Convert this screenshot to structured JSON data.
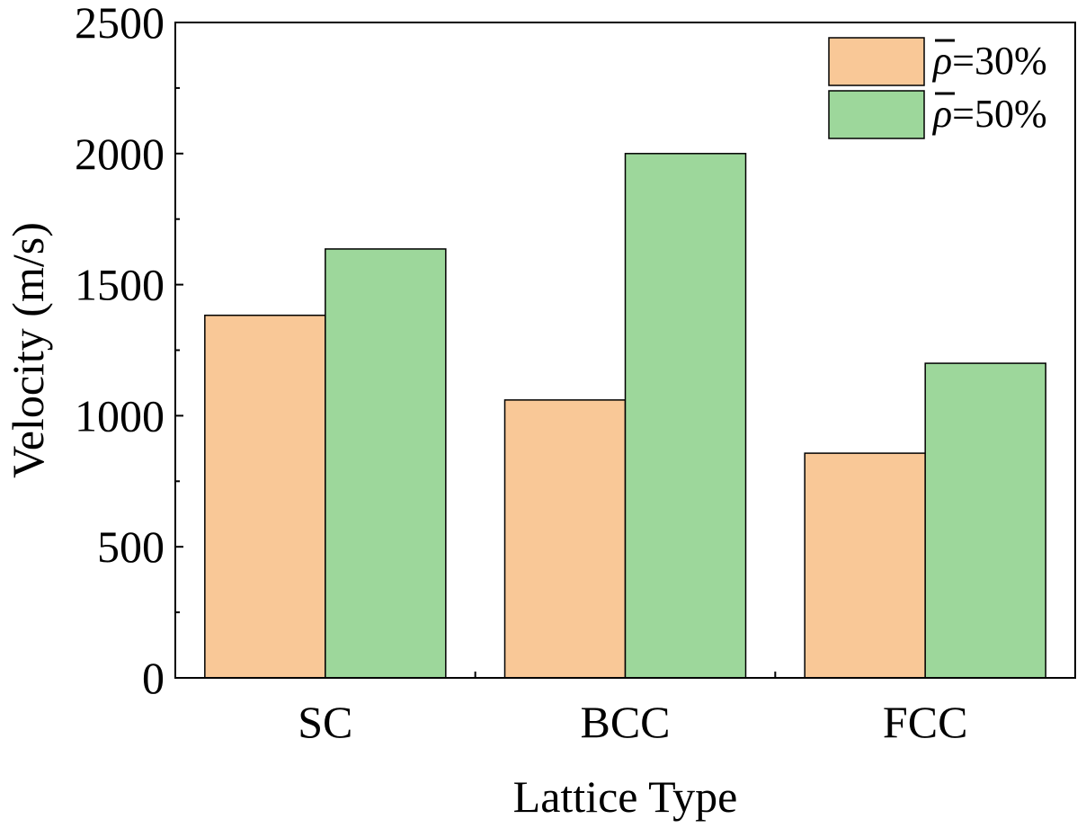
{
  "chart_data": {
    "type": "bar",
    "title": "",
    "xlabel": "Lattice Type",
    "ylabel": "Velocity (m/s)",
    "categories": [
      "SC",
      "BCC",
      "FCC"
    ],
    "ylim": [
      0,
      2500
    ],
    "yticks": [
      0,
      500,
      1000,
      1500,
      2000,
      2500
    ],
    "grid": false,
    "legend_position": "top-right",
    "series": [
      {
        "name": "ρ=30%",
        "symbol": "ρ",
        "suffix": "=30%",
        "color": "#F9C897",
        "values": [
          1383,
          1060,
          857
        ]
      },
      {
        "name": "ρ=50%",
        "symbol": "ρ",
        "suffix": "=50%",
        "color": "#9DD79B",
        "values": [
          1636,
          2000,
          1200
        ]
      }
    ]
  }
}
